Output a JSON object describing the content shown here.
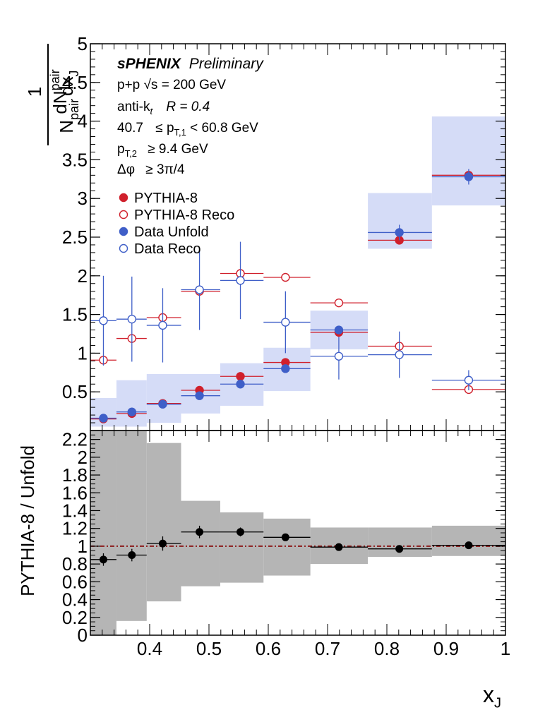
{
  "colors": {
    "pythia": "#d0202c",
    "data": "#3f5fc8",
    "syst_band": "#d5dcf7",
    "ratio_band": "#b5b5b5",
    "ratio_points": "#000000",
    "unity_line": "#8b1a1a"
  },
  "text": {
    "experiment": "sPHENIX",
    "status": "Preliminary",
    "collision": "p+p   √s = 200 GeV",
    "jet_alg": "anti-k",
    "jet_alg_sub": "t",
    "jet_radius": "R = 0.4",
    "pt1_lo": "40.7",
    "pt1_mid": "≤ p",
    "pt1_sub": "T,1",
    "pt1_hi": "< 60.8 GeV",
    "pt2_p": "p",
    "pt2_sub": "T,2",
    "pt2_val": "≥ 9.4 GeV",
    "dphi": "Δφ",
    "dphi_val": "≥ 3π/4"
  },
  "chart_data": [
    {
      "type": "scatter",
      "ylabel_num": "1",
      "ylabel_num2": "dN",
      "ylabel_num2_sub": "pair",
      "ylabel_den": "N",
      "ylabel_den_sub": "pair",
      "ylabel_den2": "dx",
      "ylabel_den2_sub": "J",
      "xlim": [
        0.3,
        1.0
      ],
      "ylim": [
        0,
        5
      ],
      "yticks": [
        "0",
        "0.5",
        "1",
        "1.5",
        "2",
        "2.5",
        "3",
        "3.5",
        "4",
        "4.5",
        "5"
      ],
      "bin_edges": [
        0.3,
        0.344,
        0.395,
        0.453,
        0.519,
        0.592,
        0.671,
        0.768,
        0.876,
        1.0
      ],
      "bin_centers": [
        0.322,
        0.37,
        0.422,
        0.484,
        0.553,
        0.629,
        0.719,
        0.821,
        0.938
      ],
      "legend": [
        {
          "label": "PYTHIA-8",
          "marker": "filled",
          "color": "pythia"
        },
        {
          "label": "PYTHIA-8 Reco",
          "marker": "open",
          "color": "pythia"
        },
        {
          "label": "Data Unfold",
          "marker": "filled",
          "color": "data"
        },
        {
          "label": "Data Reco",
          "marker": "open",
          "color": "data"
        }
      ],
      "series": [
        {
          "name": "PYTHIA-8",
          "values": [
            0.15,
            0.22,
            0.35,
            0.52,
            0.7,
            0.88,
            1.27,
            2.46,
            3.3
          ]
        },
        {
          "name": "PYTHIA-8 Reco",
          "values": [
            0.91,
            1.19,
            1.46,
            1.8,
            2.03,
            1.98,
            1.65,
            1.09,
            0.53
          ]
        },
        {
          "name": "Data Unfold",
          "values": [
            0.16,
            0.24,
            0.34,
            0.45,
            0.6,
            0.8,
            1.3,
            2.56,
            3.28
          ],
          "err": [
            0.02,
            0.02,
            0.02,
            0.03,
            0.03,
            0.03,
            0.05,
            0.1,
            0.1
          ],
          "syst_lo": [
            0.05,
            0.05,
            0.1,
            0.22,
            0.32,
            0.51,
            1.05,
            2.35,
            2.91
          ],
          "syst_hi": [
            0.42,
            0.65,
            0.73,
            0.73,
            0.87,
            1.07,
            1.55,
            3.07,
            4.06
          ]
        },
        {
          "name": "Data Reco",
          "values": [
            1.42,
            1.44,
            1.36,
            1.82,
            1.94,
            1.4,
            0.96,
            0.98,
            0.65
          ],
          "err": [
            0.58,
            0.55,
            0.48,
            0.52,
            0.5,
            0.4,
            0.3,
            0.3,
            0.13
          ]
        }
      ]
    },
    {
      "type": "scatter",
      "ylabel": "PYTHIA-8 / Unfold",
      "xlabel": "x",
      "xlabel_sub": "J",
      "xlim": [
        0.3,
        1.0
      ],
      "ylim": [
        0,
        2.3
      ],
      "yticks": [
        "0",
        "0.2",
        "0.4",
        "0.6",
        "0.8",
        "1",
        "1.2",
        "1.4",
        "1.6",
        "1.8",
        "2",
        "2.2"
      ],
      "xticks": [
        "0.4",
        "0.5",
        "0.6",
        "0.7",
        "0.8",
        "0.9",
        "1"
      ],
      "bin_centers": [
        0.322,
        0.37,
        0.422,
        0.484,
        0.553,
        0.629,
        0.719,
        0.821,
        0.938
      ],
      "ratio": [
        0.85,
        0.9,
        1.03,
        1.16,
        1.16,
        1.1,
        0.99,
        0.97,
        1.01
      ],
      "ratio_err": [
        0.07,
        0.07,
        0.08,
        0.07,
        0.05,
        0.04,
        0.03,
        0.03,
        0.03
      ],
      "band_lo": [
        0.0,
        0.16,
        0.38,
        0.55,
        0.59,
        0.67,
        0.8,
        0.88,
        0.89
      ],
      "band_hi": [
        2.3,
        2.3,
        2.16,
        1.51,
        1.38,
        1.31,
        1.21,
        1.21,
        1.23
      ],
      "unity": 1.0
    }
  ]
}
